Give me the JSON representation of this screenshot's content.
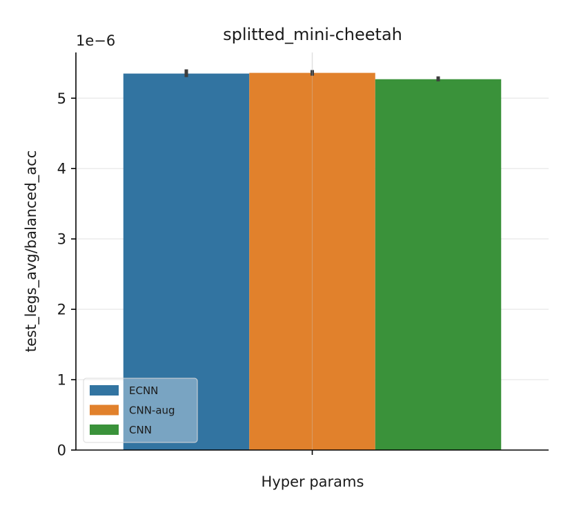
{
  "chart_data": {
    "type": "bar",
    "title": "splitted_mini-cheetah",
    "xlabel": "Hyper params",
    "ylabel": "test_legs_avg/balanced_acc",
    "scale_label": "1e−6",
    "y_scale": 1e-06,
    "ylim": [
      0,
      5.65
    ],
    "yticks": [
      0,
      1,
      2,
      3,
      4,
      5
    ],
    "grid": true,
    "legend_placement": "lower-left",
    "series": [
      {
        "name": "ECNN",
        "value": 5.35,
        "err_low": 5.3,
        "err_high": 5.41,
        "color": "#3274a1"
      },
      {
        "name": "CNN-aug",
        "value": 5.36,
        "err_low": 5.32,
        "err_high": 5.4,
        "color": "#e1812c"
      },
      {
        "name": "CNN",
        "value": 5.27,
        "err_low": 5.24,
        "err_high": 5.31,
        "color": "#3a923a"
      }
    ]
  }
}
